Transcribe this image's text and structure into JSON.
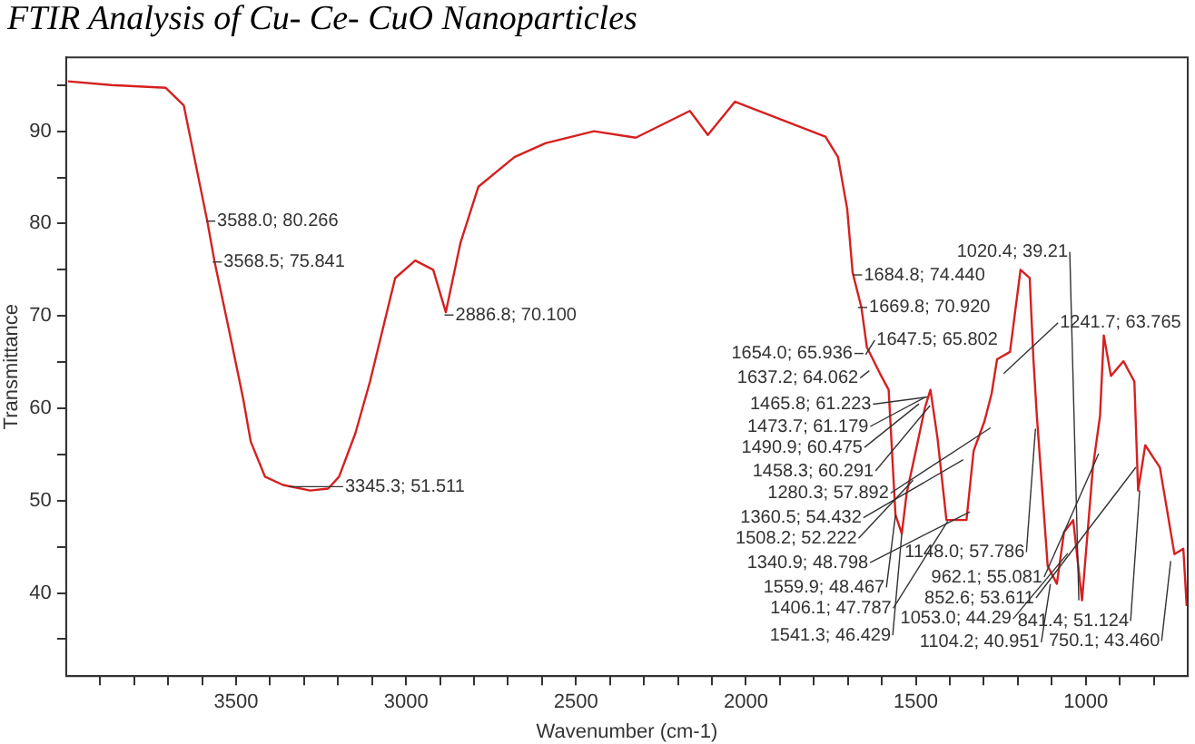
{
  "chart_data": {
    "type": "line",
    "title": "FTIR Analysis of Cu- Ce- CuO Nanoparticles",
    "xlabel": "Wavenumber (cm-1)",
    "ylabel": "Transmittance",
    "xlim": [
      4000,
      700
    ],
    "ylim": [
      31,
      98
    ],
    "xticks": [
      {
        "value": 3900,
        "label": null
      },
      {
        "value": 3800,
        "label": null
      },
      {
        "value": 3700,
        "label": null
      },
      {
        "value": 3600,
        "label": null
      },
      3500,
      {
        "value": 3400,
        "label": null
      },
      {
        "value": 3300,
        "label": null
      },
      {
        "value": 3200,
        "label": null
      },
      {
        "value": 3100,
        "label": null
      },
      3000,
      {
        "value": 2900,
        "label": null
      },
      {
        "value": 2800,
        "label": null
      },
      {
        "value": 2700,
        "label": null
      },
      {
        "value": 2600,
        "label": null
      },
      2500,
      {
        "value": 2400,
        "label": null
      },
      {
        "value": 2300,
        "label": null
      },
      {
        "value": 2200,
        "label": null
      },
      {
        "value": 2100,
        "label": null
      },
      2000,
      {
        "value": 1900,
        "label": null
      },
      {
        "value": 1800,
        "label": null
      },
      {
        "value": 1700,
        "label": null
      },
      {
        "value": 1600,
        "label": null
      },
      1500,
      {
        "value": 1400,
        "label": null
      },
      {
        "value": 1300,
        "label": null
      },
      {
        "value": 1200,
        "label": null
      },
      {
        "value": 1100,
        "label": null
      },
      1000,
      {
        "value": 900,
        "label": null
      },
      {
        "value": 800,
        "label": null
      }
    ],
    "yticks": [
      {
        "value": 35,
        "label": null
      },
      40,
      {
        "value": 45,
        "label": null
      },
      50,
      {
        "value": 55,
        "label": null
      },
      60,
      {
        "value": 65,
        "label": null
      },
      70,
      {
        "value": 75,
        "label": null
      },
      80,
      {
        "value": 85,
        "label": null
      },
      90,
      {
        "value": 95,
        "label": null
      }
    ],
    "grid": false,
    "legend": false,
    "marker": "none",
    "line_style": "solid",
    "series": [
      {
        "color": "#d62020",
        "x": [
          3995,
          3867,
          3707,
          3654,
          3585,
          3564,
          3521,
          3479,
          3457,
          3415,
          3362,
          3282,
          3229,
          3197,
          3149,
          3106,
          3032,
          2973,
          2920,
          2883,
          2840,
          2787,
          2681,
          2590,
          2447,
          2324,
          2165,
          2112,
          2032,
          1899,
          1766,
          1729,
          1702,
          1686,
          1660,
          1644,
          1606,
          1580,
          1559.9,
          1541.3,
          1527,
          1500,
          1473,
          1457,
          1436,
          1410,
          1351,
          1330,
          1298,
          1277,
          1261,
          1223,
          1192,
          1165,
          1154,
          1144,
          1112,
          1085,
          1064,
          1037,
          1011,
          979,
          958,
          947,
          926,
          889,
          857,
          846,
          825,
          782,
          739,
          713,
          703
        ],
        "values": [
          95.4,
          95.0,
          94.7,
          92.8,
          80.3,
          76.0,
          68.5,
          61.0,
          56.4,
          52.6,
          51.7,
          51.1,
          51.3,
          52.6,
          57.3,
          62.9,
          74.1,
          76.0,
          75.0,
          70.4,
          77.9,
          84.0,
          87.2,
          88.7,
          90.0,
          89.3,
          92.2,
          89.6,
          93.2,
          91.3,
          89.4,
          87.2,
          81.6,
          74.7,
          70.9,
          66.6,
          63.8,
          62.0,
          48.467,
          46.429,
          50.8,
          55.4,
          60.1,
          62.0,
          56.7,
          47.9,
          47.9,
          55.4,
          58.6,
          61.6,
          65.3,
          66.1,
          75.0,
          74.1,
          65.3,
          59.2,
          42.9,
          41.0,
          46.6,
          47.9,
          39.2,
          53.6,
          59.2,
          67.9,
          63.5,
          65.1,
          62.9,
          51.1,
          56.0,
          53.6,
          44.2,
          44.8,
          38.6
        ]
      }
    ],
    "annotations": [
      {
        "text": "3588.0; 80.266",
        "x": 3588.0,
        "y": 80.266
      },
      {
        "text": "3568.5; 75.841",
        "x": 3568.5,
        "y": 75.841
      },
      {
        "text": "2886.8; 70.100",
        "x": 2886.8,
        "y": 70.1
      },
      {
        "text": "3345.3; 51.511",
        "x": 3345.3,
        "y": 51.511
      },
      {
        "text": "1684.8; 74.440",
        "x": 1684.8,
        "y": 74.44
      },
      {
        "text": "1669.8; 70.920",
        "x": 1669.8,
        "y": 70.92
      },
      {
        "text": "1654.0; 65.936",
        "x": 1654.0,
        "y": 65.936
      },
      {
        "text": "1647.5; 65.802",
        "x": 1647.5,
        "y": 65.802
      },
      {
        "text": "1637.2; 64.062",
        "x": 1637.2,
        "y": 64.062
      },
      {
        "text": "1241.7; 63.765",
        "x": 1241.7,
        "y": 63.765
      },
      {
        "text": "1465.8; 61.223",
        "x": 1465.8,
        "y": 61.223
      },
      {
        "text": "1473.7; 61.179",
        "x": 1473.7,
        "y": 61.179
      },
      {
        "text": "1490.9; 60.475",
        "x": 1490.9,
        "y": 60.475
      },
      {
        "text": "1458.3; 60.291",
        "x": 1458.3,
        "y": 60.291
      },
      {
        "text": "1280.3; 57.892",
        "x": 1280.3,
        "y": 57.892
      },
      {
        "text": "1148.0; 57.786",
        "x": 1148.0,
        "y": 57.786
      },
      {
        "text": "962.1; 55.081",
        "x": 962.1,
        "y": 55.081
      },
      {
        "text": "1360.5; 54.432",
        "x": 1360.5,
        "y": 54.432
      },
      {
        "text": "852.6; 53.611",
        "x": 852.6,
        "y": 53.611
      },
      {
        "text": "1508.2; 52.222",
        "x": 1508.2,
        "y": 52.222
      },
      {
        "text": "841.4; 51.124",
        "x": 841.4,
        "y": 51.124
      },
      {
        "text": "1340.9; 48.798",
        "x": 1340.9,
        "y": 48.798
      },
      {
        "text": "1559.9; 48.467",
        "x": 1559.9,
        "y": 48.467
      },
      {
        "text": "1406.1; 47.787",
        "x": 1406.1,
        "y": 47.787
      },
      {
        "text": "1541.3; 46.429",
        "x": 1541.3,
        "y": 46.429
      },
      {
        "text": "1053.0; 44.29",
        "x": 1053.0,
        "y": 44.29
      },
      {
        "text": "750.1; 43.460",
        "x": 750.1,
        "y": 43.46
      },
      {
        "text": "1104.2; 40.951",
        "x": 1104.2,
        "y": 40.951
      },
      {
        "text": "1020.4; 39.21",
        "x": 1020.4,
        "y": 39.21
      }
    ]
  }
}
